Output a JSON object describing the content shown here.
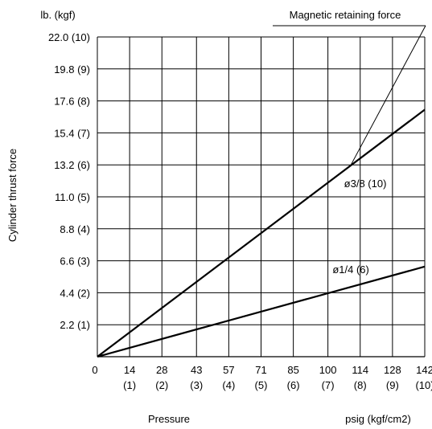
{
  "chart_data": {
    "type": "line",
    "y_unit_label": "lb. (kgf)",
    "ylabel": "Cylinder thrust force",
    "xlabel": "Pressure",
    "x_unit_label": "psig (kgf/cm2)",
    "x_ticks": [
      {
        "value": 0,
        "label": "0",
        "sublabel": ""
      },
      {
        "value": 14,
        "label": "14",
        "sublabel": "(1)"
      },
      {
        "value": 28,
        "label": "28",
        "sublabel": "(2)"
      },
      {
        "value": 43,
        "label": "43",
        "sublabel": "(3)"
      },
      {
        "value": 57,
        "label": "57",
        "sublabel": "(4)"
      },
      {
        "value": 71,
        "label": "71",
        "sublabel": "(5)"
      },
      {
        "value": 85,
        "label": "85",
        "sublabel": "(6)"
      },
      {
        "value": 100,
        "label": "100",
        "sublabel": "(7)"
      },
      {
        "value": 114,
        "label": "114",
        "sublabel": "(8)"
      },
      {
        "value": 128,
        "label": "128",
        "sublabel": "(9)"
      },
      {
        "value": 142,
        "label": "142",
        "sublabel": "(10)"
      }
    ],
    "y_ticks": [
      {
        "value": 2.2,
        "label": "2.2 (1)"
      },
      {
        "value": 4.4,
        "label": "4.4 (2)"
      },
      {
        "value": 6.6,
        "label": "6.6 (3)"
      },
      {
        "value": 8.8,
        "label": "8.8 (4)"
      },
      {
        "value": 11.0,
        "label": "11.0 (5)"
      },
      {
        "value": 13.2,
        "label": "13.2 (6)"
      },
      {
        "value": 15.4,
        "label": "15.4 (7)"
      },
      {
        "value": 17.6,
        "label": "17.6 (8)"
      },
      {
        "value": 19.8,
        "label": "19.8 (9)"
      },
      {
        "value": 22.0,
        "label": "22.0 (10)"
      }
    ],
    "xlim": [
      0,
      142
    ],
    "ylim": [
      0,
      22.0
    ],
    "grid": true,
    "series": [
      {
        "name": "ø3/8 (10)",
        "x": [
          0,
          142
        ],
        "y": [
          0,
          17.0
        ]
      },
      {
        "name": "ø1/4 (6)",
        "x": [
          0,
          142
        ],
        "y": [
          0,
          6.2
        ]
      }
    ],
    "annotations": [
      {
        "text": "Magnetic retaining force",
        "leader_from": {
          "x": 110,
          "y": 13.2
        },
        "leader_to_value_y": 22.0
      }
    ],
    "colors": {
      "line": "#000000",
      "grid": "#000000",
      "background": "#ffffff"
    }
  }
}
